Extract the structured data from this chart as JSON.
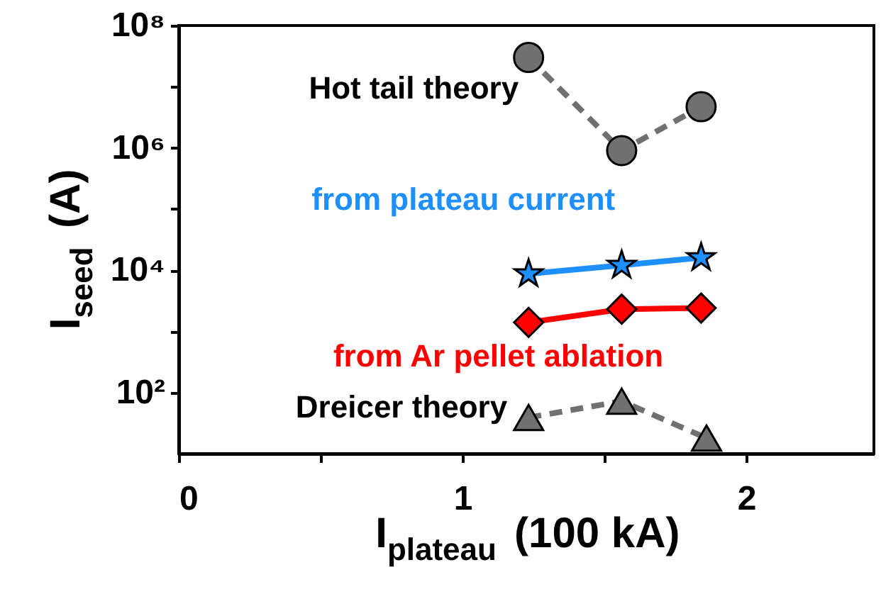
{
  "chart_data": {
    "type": "line",
    "xlabel": "I$_{plateau}$ (100 kA)",
    "ylabel": "I$_{seed}$ (A)",
    "log": "y",
    "xlim": [
      0,
      2.45
    ],
    "xticks": [
      0,
      {
        "value": 0.5,
        "label": null
      },
      1,
      {
        "value": 1.5,
        "label": null
      },
      2
    ],
    "ylim": [
      10,
      100000000
    ],
    "yticks": [
      {
        "value": 100,
        "label": "10²"
      },
      {
        "value": 1000,
        "label": null
      },
      {
        "value": 10000,
        "label": "10⁴"
      },
      {
        "value": 100000,
        "label": null
      },
      {
        "value": 1000000,
        "label": "10⁶"
      },
      {
        "value": 10000000,
        "label": null
      },
      {
        "value": 100000000,
        "label": "10⁸"
      }
    ],
    "series": [
      {
        "name": "Hot tail theory",
        "color": "#707070",
        "marker": "circle",
        "line_style": "dashed",
        "x": [
          1.233,
          1.561,
          1.841
        ],
        "values": [
          30000000,
          900000,
          4700000
        ]
      },
      {
        "name": "from plateau current",
        "color": "#1e8fff",
        "marker": "star",
        "line_style": "solid",
        "x": [
          1.233,
          1.561,
          1.841
        ],
        "values": [
          8700,
          12000,
          16000
        ]
      },
      {
        "name": "from Ar pellet ablation",
        "color": "#ff0000",
        "marker": "diamond",
        "line_style": "solid",
        "x": [
          1.233,
          1.561,
          1.841
        ],
        "values": [
          1400,
          2300,
          2400
        ]
      },
      {
        "name": "Dreicer theory",
        "color": "#707070",
        "marker": "triangle",
        "line_style": "dashed",
        "x": [
          1.233,
          1.561,
          1.86
        ],
        "values": [
          39,
          72,
          18
        ]
      }
    ]
  }
}
